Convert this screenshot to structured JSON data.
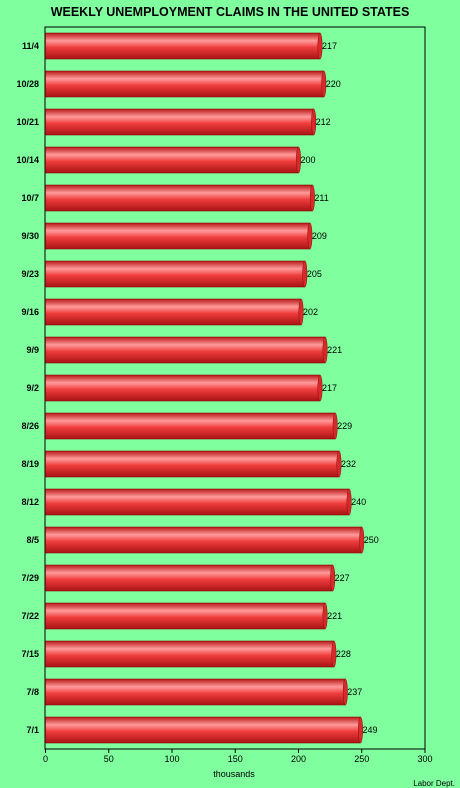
{
  "chart_data": {
    "type": "bar",
    "orientation": "horizontal",
    "title": "WEEKLY UNEMPLOYMENT CLAIMS IN THE UNITED STATES",
    "xlabel": "thousands",
    "source": "Labor Dept.",
    "categories": [
      "11/4",
      "10/28",
      "10/21",
      "10/14",
      "10/7",
      "9/30",
      "9/23",
      "9/16",
      "9/9",
      "9/2",
      "8/26",
      "8/19",
      "8/12",
      "8/5",
      "7/29",
      "7/22",
      "7/15",
      "7/8",
      "7/1"
    ],
    "values": [
      217,
      220,
      212,
      200,
      211,
      209,
      205,
      202,
      221,
      217,
      229,
      232,
      240,
      250,
      227,
      221,
      228,
      237,
      249
    ],
    "xlim": [
      0,
      300
    ],
    "xticks": [
      0,
      50,
      100,
      150,
      200,
      250,
      300
    ],
    "grid": false,
    "colors": {
      "background": "#80ff9f",
      "bar_light": "#ff9a9a",
      "bar_mid": "#f03e3e",
      "bar_dark": "#b81818"
    }
  }
}
